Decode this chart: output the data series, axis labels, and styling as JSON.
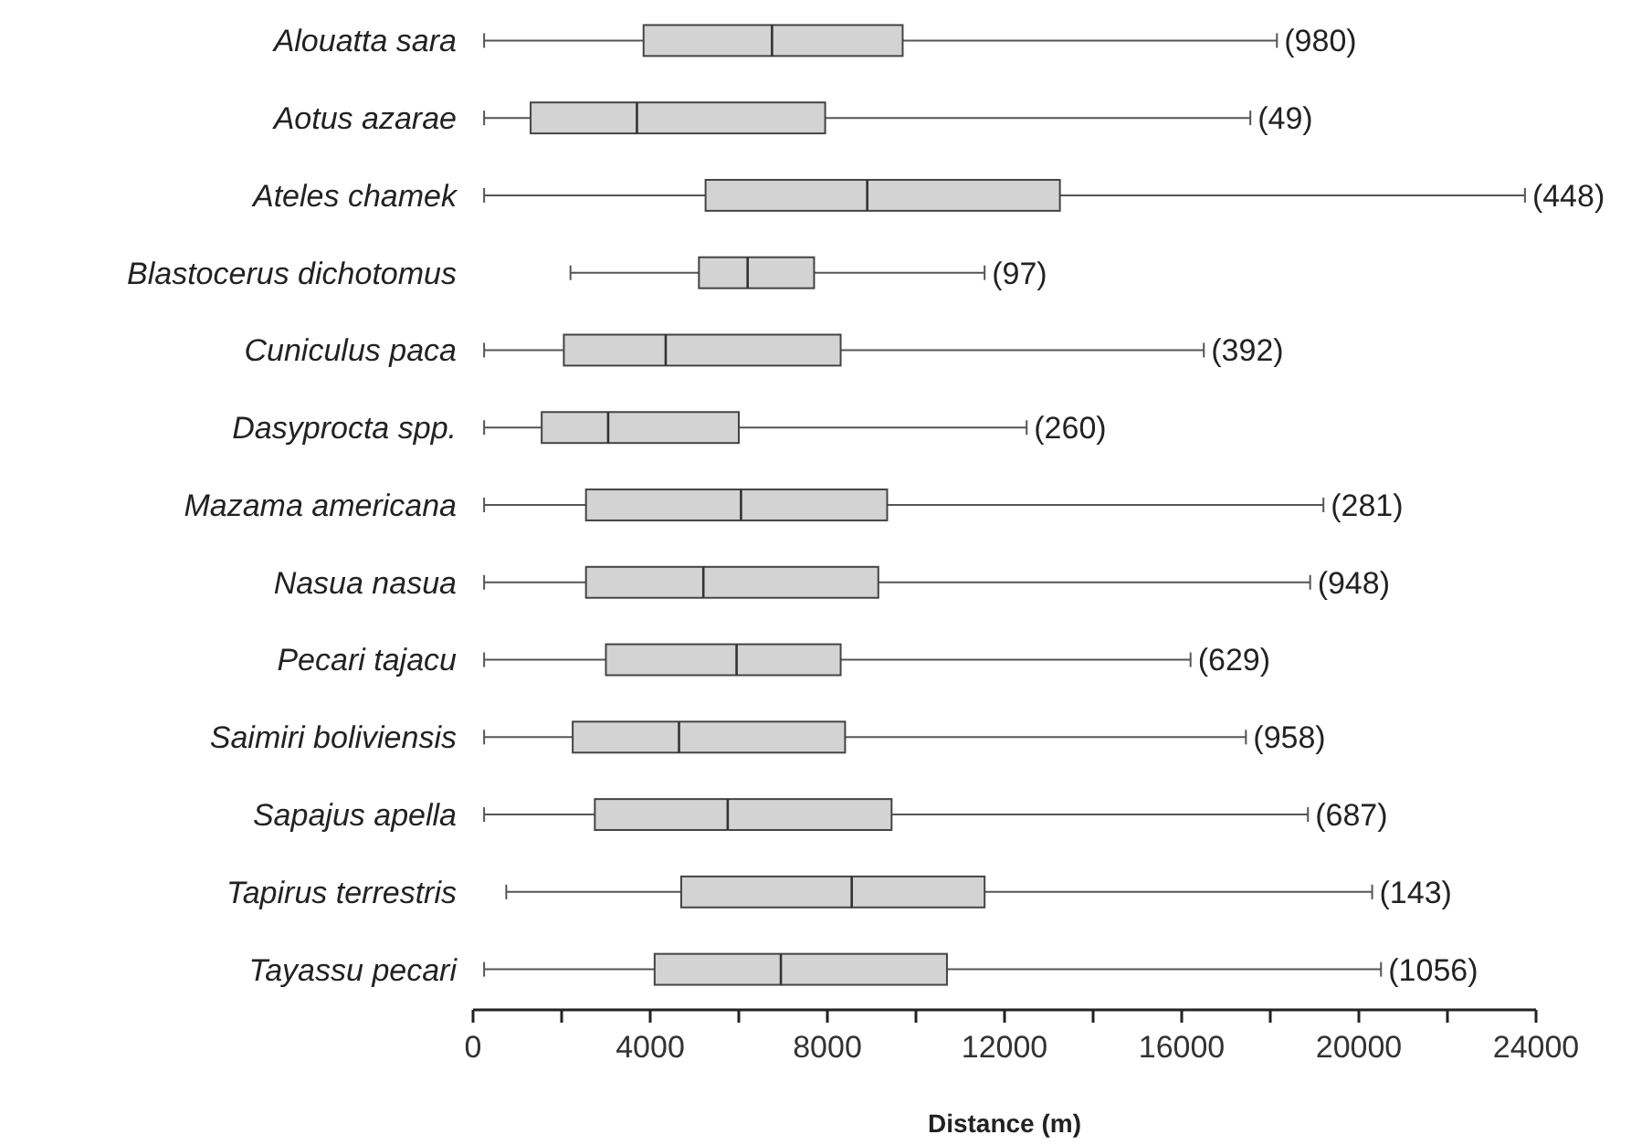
{
  "chart_data": {
    "type": "box",
    "orientation": "horizontal",
    "xlabel": "Distance (m)",
    "categories": [
      "Alouatta sara",
      "Aotus azarae",
      "Ateles chamek",
      "Blastocerus dichotomus",
      "Cuniculus paca",
      "Dasyprocta spp.",
      "Mazama americana",
      "Nasua nasua",
      "Pecari tajacu",
      "Saimiri boliviensis",
      "Sapajus apella",
      "Tapirus terrestris",
      "Tayassu pecari"
    ],
    "boxes": [
      {
        "low": 250,
        "q1": 3850,
        "median": 6750,
        "q3": 9700,
        "high": 18150
      },
      {
        "low": 250,
        "q1": 1300,
        "median": 3700,
        "q3": 7950,
        "high": 17550
      },
      {
        "low": 250,
        "q1": 5250,
        "median": 8900,
        "q3": 13250,
        "high": 23750
      },
      {
        "low": 2200,
        "q1": 5100,
        "median": 6200,
        "q3": 7700,
        "high": 11550
      },
      {
        "low": 250,
        "q1": 2050,
        "median": 4350,
        "q3": 8300,
        "high": 16500
      },
      {
        "low": 250,
        "q1": 1550,
        "median": 3050,
        "q3": 6000,
        "high": 12500
      },
      {
        "low": 250,
        "q1": 2550,
        "median": 6050,
        "q3": 9350,
        "high": 19200
      },
      {
        "low": 250,
        "q1": 2550,
        "median": 5200,
        "q3": 9150,
        "high": 18900
      },
      {
        "low": 250,
        "q1": 3000,
        "median": 5950,
        "q3": 8300,
        "high": 16200
      },
      {
        "low": 250,
        "q1": 2250,
        "median": 4650,
        "q3": 8400,
        "high": 17450
      },
      {
        "low": 250,
        "q1": 2750,
        "median": 5750,
        "q3": 9450,
        "high": 18850
      },
      {
        "low": 750,
        "q1": 4700,
        "median": 8550,
        "q3": 11550,
        "high": 20300
      },
      {
        "low": 250,
        "q1": 4100,
        "median": 6950,
        "q3": 10700,
        "high": 20500
      }
    ],
    "color": "#d3d3d3",
    "xlim": [
      0,
      24000
    ],
    "xticks": [
      0,
      {
        "value": 2000,
        "label": null
      },
      4000,
      {
        "value": 6000,
        "label": null
      },
      8000,
      {
        "value": 10000,
        "label": null
      },
      12000,
      {
        "value": 14000,
        "label": null
      },
      16000,
      {
        "value": 18000,
        "label": null
      },
      20000,
      {
        "value": 22000,
        "label": null
      },
      24000
    ],
    "annotations": [
      {
        "text": "(980)",
        "x": 18150,
        "y": "Alouatta sara"
      },
      {
        "text": "(49)",
        "x": 17550,
        "y": "Aotus azarae"
      },
      {
        "text": "(448)",
        "x": 23750,
        "y": "Ateles chamek"
      },
      {
        "text": "(97)",
        "x": 11550,
        "y": "Blastocerus dichotomus"
      },
      {
        "text": "(392)",
        "x": 16500,
        "y": "Cuniculus paca"
      },
      {
        "text": "(260)",
        "x": 12500,
        "y": "Dasyprocta spp."
      },
      {
        "text": "(281)",
        "x": 19200,
        "y": "Mazama americana"
      },
      {
        "text": "(948)",
        "x": 18900,
        "y": "Nasua nasua"
      },
      {
        "text": "(629)",
        "x": 16200,
        "y": "Pecari tajacu"
      },
      {
        "text": "(958)",
        "x": 17450,
        "y": "Saimiri boliviensis"
      },
      {
        "text": "(687)",
        "x": 18850,
        "y": "Sapajus apella"
      },
      {
        "text": "(143)",
        "x": 20300,
        "y": "Tapirus terrestris"
      },
      {
        "text": "(1056)",
        "x": 20500,
        "y": "Tayassu pecari"
      }
    ]
  }
}
